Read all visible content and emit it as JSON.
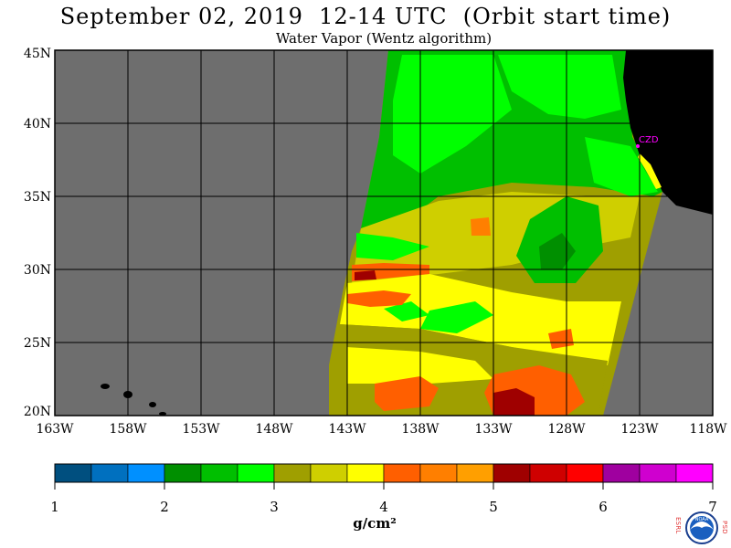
{
  "header": {
    "title": "September 02, 2019  12-14 UTC  (Orbit start time)",
    "subtitle": "Water Vapor (Wentz algorithm)"
  },
  "map": {
    "lat_labels": [
      "45N",
      "40N",
      "35N",
      "30N",
      "25N",
      "20N"
    ],
    "lon_labels": [
      "163W",
      "158W",
      "153W",
      "148W",
      "143W",
      "138W",
      "133W",
      "128W",
      "123W",
      "118W"
    ],
    "station_label": "CZD",
    "colors": {
      "no_data": "#6e6e6e",
      "land": "#000000",
      "grid": "#000000",
      "station": "#ff00ff"
    }
  },
  "colorbar": {
    "tick_labels": [
      "1",
      "2",
      "3",
      "4",
      "5",
      "6",
      "7"
    ],
    "units": "g/cm²",
    "colors": [
      "#004f7f",
      "#0070bf",
      "#0090ff",
      "#008f00",
      "#00bf00",
      "#00ff00",
      "#9f9f00",
      "#cfcf00",
      "#ffff00",
      "#ff5f00",
      "#ff7f00",
      "#ff9f00",
      "#9f0000",
      "#cf0000",
      "#ff0000",
      "#9f009f",
      "#cf00cf",
      "#ff00ff"
    ]
  },
  "logo": {
    "left_letters": "E S R L",
    "right_letters": "P S D",
    "center_text": "NOAA"
  }
}
